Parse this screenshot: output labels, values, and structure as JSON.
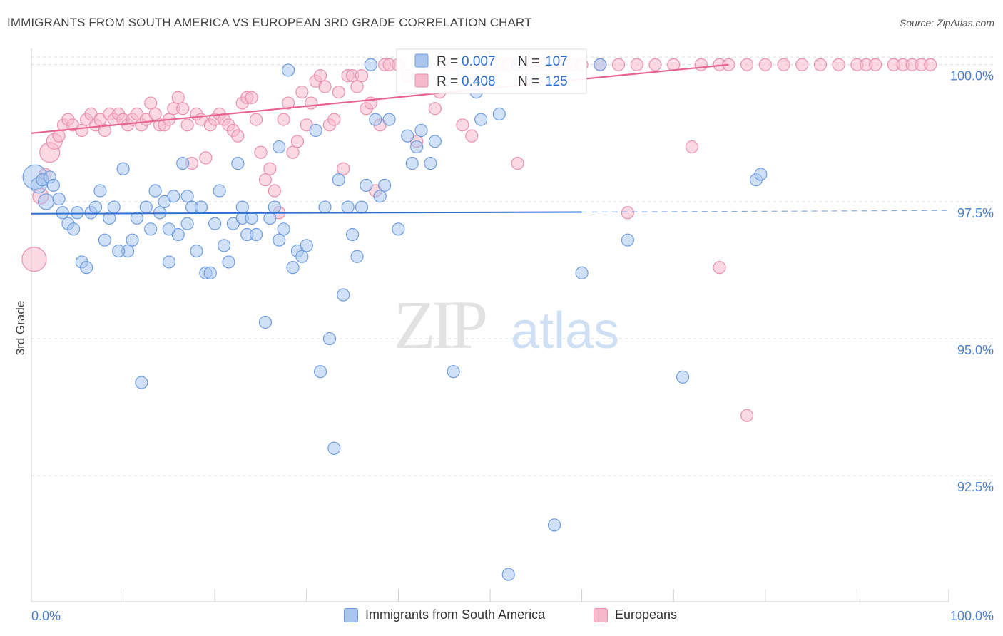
{
  "title": "IMMIGRANTS FROM SOUTH AMERICA VS EUROPEAN 3RD GRADE CORRELATION CHART",
  "source": "Source: ZipAtlas.com",
  "watermark": {
    "zip": "ZIP",
    "atlas": "atlas"
  },
  "colors": {
    "blue_fill": "#a9c6ee",
    "blue_stroke": "#6f9de0",
    "blue_line": "#2f6fd0",
    "pink_fill": "#f6b9cc",
    "pink_stroke": "#ea8fae",
    "pink_line": "#e8638f",
    "axis_text": "#4a7fd0",
    "grid": "#d9d9d9"
  },
  "legend_box": {
    "rows": [
      {
        "r_label": "R = ",
        "r_value": "0.007",
        "n_label": "N = ",
        "n_value": "107",
        "series": "blue"
      },
      {
        "r_label": "R = ",
        "r_value": "0.408",
        "n_label": "N = ",
        "n_value": "125",
        "series": "pink"
      }
    ]
  },
  "chart_data": {
    "type": "scatter",
    "title": "IMMIGRANTS FROM SOUTH AMERICA VS EUROPEAN 3RD GRADE CORRELATION CHART",
    "xlabel": "",
    "ylabel": "3rd Grade",
    "xlim": [
      0,
      100
    ],
    "ylim": [
      90.2,
      100.4
    ],
    "x_tick_labels": [
      "0.0%",
      "100.0%"
    ],
    "y_ticks": [
      100.0,
      97.5,
      95.0,
      92.5
    ],
    "y_tick_labels": [
      "100.0%",
      "97.5%",
      "95.0%",
      "92.5%"
    ],
    "grid": "horizontal dashed",
    "legend_position": "bottom",
    "series": [
      {
        "name": "Immigrants from South America",
        "color": "blue",
        "r": 0.007,
        "n": 107,
        "trend": {
          "x0": 0,
          "y0": 97.28,
          "x1": 60,
          "y1": 97.31,
          "dash_to": 100,
          "dash_y": 97.34
        },
        "points": [
          [
            0.4,
            97.95,
            4
          ],
          [
            0.8,
            97.8,
            2
          ],
          [
            1.2,
            97.9,
            1
          ],
          [
            1.6,
            97.5,
            2
          ],
          [
            2,
            97.95,
            1
          ],
          [
            2.4,
            97.8,
            1
          ],
          [
            3,
            97.55,
            1
          ],
          [
            3.4,
            97.3,
            1
          ],
          [
            4,
            97.1,
            1
          ],
          [
            4.6,
            97.0,
            1
          ],
          [
            5,
            97.3,
            1
          ],
          [
            5.5,
            96.4,
            1
          ],
          [
            6,
            96.3,
            1
          ],
          [
            6.5,
            97.3,
            1
          ],
          [
            7,
            97.4,
            1
          ],
          [
            7.5,
            97.7,
            1
          ],
          [
            8,
            96.8,
            1
          ],
          [
            8.5,
            97.2,
            1
          ],
          [
            9,
            97.4,
            1
          ],
          [
            10,
            98.1,
            1
          ],
          [
            10.5,
            96.6,
            1
          ],
          [
            11,
            96.8,
            1
          ],
          [
            11.5,
            97.2,
            1
          ],
          [
            12,
            94.2,
            1
          ],
          [
            12.5,
            97.4,
            1
          ],
          [
            13,
            97.0,
            1
          ],
          [
            13.5,
            97.7,
            1
          ],
          [
            14,
            97.3,
            1
          ],
          [
            14.5,
            97.5,
            1
          ],
          [
            15,
            96.4,
            1
          ],
          [
            15.5,
            97.6,
            1
          ],
          [
            16,
            96.9,
            1
          ],
          [
            16.5,
            98.2,
            1
          ],
          [
            17,
            97.6,
            1
          ],
          [
            17.5,
            97.4,
            1
          ],
          [
            18,
            96.6,
            1
          ],
          [
            18.5,
            97.4,
            1
          ],
          [
            19,
            96.2,
            1
          ],
          [
            19.5,
            96.2,
            1
          ],
          [
            20,
            97.1,
            1
          ],
          [
            20.5,
            97.7,
            1
          ],
          [
            21,
            96.7,
            1
          ],
          [
            21.5,
            96.4,
            1
          ],
          [
            22,
            97.1,
            1
          ],
          [
            22.5,
            98.2,
            1
          ],
          [
            23,
            97.2,
            1
          ],
          [
            23.5,
            96.9,
            1
          ],
          [
            24,
            97.2,
            1
          ],
          [
            24.5,
            96.9,
            1
          ],
          [
            25.5,
            95.3,
            1
          ],
          [
            26,
            97.2,
            1
          ],
          [
            26.5,
            97.4,
            1
          ],
          [
            27,
            98.5,
            1
          ],
          [
            27.5,
            97.0,
            1
          ],
          [
            28,
            99.9,
            1
          ],
          [
            28.5,
            96.3,
            1
          ],
          [
            29,
            96.6,
            1
          ],
          [
            29.5,
            96.5,
            1
          ],
          [
            30,
            96.7,
            1
          ],
          [
            31,
            98.8,
            1
          ],
          [
            31.5,
            94.4,
            1
          ],
          [
            32,
            97.4,
            1
          ],
          [
            32.5,
            95.0,
            1
          ],
          [
            33,
            93.0,
            1
          ],
          [
            33.5,
            97.9,
            1
          ],
          [
            34,
            95.8,
            1
          ],
          [
            34.5,
            97.4,
            1
          ],
          [
            35,
            96.9,
            1
          ],
          [
            35.5,
            96.5,
            1
          ],
          [
            36,
            97.4,
            1
          ],
          [
            37,
            100.0,
            1
          ],
          [
            37.5,
            99.0,
            1
          ],
          [
            38,
            97.6,
            1
          ],
          [
            38.5,
            97.8,
            1
          ],
          [
            39,
            99.0,
            1
          ],
          [
            40,
            97.0,
            1
          ],
          [
            41,
            98.7,
            1
          ],
          [
            41.5,
            98.2,
            1
          ],
          [
            42,
            98.5,
            1
          ],
          [
            42.5,
            98.8,
            1
          ],
          [
            43,
            100.0,
            1
          ],
          [
            43.5,
            98.2,
            1
          ],
          [
            44,
            98.6,
            1
          ],
          [
            45,
            99.7,
            1
          ],
          [
            46,
            94.4,
            1
          ],
          [
            47,
            99.9,
            1
          ],
          [
            48,
            99.7,
            1
          ],
          [
            48.5,
            99.5,
            1
          ],
          [
            49,
            99.0,
            1
          ],
          [
            49.5,
            99.7,
            1
          ],
          [
            51,
            99.1,
            1
          ],
          [
            52,
            90.7,
            1
          ],
          [
            53,
            100.0,
            1
          ],
          [
            55,
            99.7,
            1
          ],
          [
            57,
            91.6,
            1
          ],
          [
            60,
            96.2,
            1
          ],
          [
            62,
            100.0,
            1
          ],
          [
            65,
            96.8,
            1
          ],
          [
            71,
            94.3,
            1
          ],
          [
            79,
            97.9,
            1
          ],
          [
            79.5,
            98.0,
            1
          ],
          [
            36.5,
            97.8,
            1
          ],
          [
            23,
            97.4,
            1
          ],
          [
            17,
            97.1,
            1
          ],
          [
            9.5,
            96.6,
            1
          ],
          [
            27,
            96.8,
            1
          ],
          [
            15,
            97.0,
            1
          ]
        ]
      },
      {
        "name": "Europeans",
        "color": "pink",
        "r": 0.408,
        "n": 125,
        "trend": {
          "x0": 0,
          "y0": 98.75,
          "x1": 76,
          "y1": 100.0
        },
        "points": [
          [
            0.3,
            96.45,
            4
          ],
          [
            1,
            97.6,
            2
          ],
          [
            1.5,
            98.0,
            1
          ],
          [
            2,
            98.4,
            3
          ],
          [
            2.5,
            98.6,
            2
          ],
          [
            3,
            98.7,
            1
          ],
          [
            3.5,
            98.9,
            1
          ],
          [
            4,
            99.0,
            1
          ],
          [
            4.5,
            98.9,
            1
          ],
          [
            5.5,
            98.8,
            1
          ],
          [
            6,
            99.0,
            1
          ],
          [
            6.5,
            99.1,
            1
          ],
          [
            7,
            98.9,
            1
          ],
          [
            7.5,
            99.0,
            1
          ],
          [
            8,
            98.8,
            1
          ],
          [
            8.5,
            99.1,
            1
          ],
          [
            9,
            99.0,
            1
          ],
          [
            9.5,
            99.1,
            1
          ],
          [
            10,
            99.0,
            1
          ],
          [
            10.5,
            98.9,
            1
          ],
          [
            11,
            99.0,
            1
          ],
          [
            11.5,
            99.1,
            1
          ],
          [
            12,
            98.9,
            1
          ],
          [
            12.5,
            99.0,
            1
          ],
          [
            13,
            99.3,
            1
          ],
          [
            13.5,
            99.1,
            1
          ],
          [
            14,
            98.9,
            1
          ],
          [
            14.5,
            98.9,
            1
          ],
          [
            15,
            99.0,
            1
          ],
          [
            15.5,
            99.2,
            1
          ],
          [
            16,
            99.4,
            1
          ],
          [
            16.5,
            99.2,
            1
          ],
          [
            17,
            98.9,
            1
          ],
          [
            17.5,
            98.2,
            1
          ],
          [
            18,
            99.1,
            1
          ],
          [
            18.5,
            99.0,
            1
          ],
          [
            19,
            98.3,
            1
          ],
          [
            19.5,
            98.9,
            1
          ],
          [
            20,
            99.0,
            1
          ],
          [
            20.5,
            99.1,
            1
          ],
          [
            21,
            99.0,
            1
          ],
          [
            21.5,
            98.9,
            1
          ],
          [
            22,
            98.8,
            1
          ],
          [
            22.5,
            98.7,
            1
          ],
          [
            23,
            99.3,
            1
          ],
          [
            23.5,
            99.4,
            1
          ],
          [
            24,
            99.4,
            1
          ],
          [
            24.5,
            99.0,
            1
          ],
          [
            25,
            98.4,
            1
          ],
          [
            25.5,
            97.9,
            1
          ],
          [
            26,
            98.1,
            1
          ],
          [
            26.5,
            97.7,
            1
          ],
          [
            27,
            97.3,
            1
          ],
          [
            27.5,
            99.0,
            1
          ],
          [
            28,
            99.3,
            1
          ],
          [
            28.5,
            98.4,
            1
          ],
          [
            29,
            98.6,
            1
          ],
          [
            29.5,
            99.5,
            1
          ],
          [
            30,
            98.9,
            1
          ],
          [
            30.5,
            99.3,
            1
          ],
          [
            31,
            99.7,
            1
          ],
          [
            31.5,
            99.8,
            1
          ],
          [
            32,
            99.6,
            1
          ],
          [
            32.5,
            98.9,
            1
          ],
          [
            33,
            99.0,
            1
          ],
          [
            33.5,
            99.5,
            1
          ],
          [
            34,
            98.1,
            1
          ],
          [
            34.5,
            99.8,
            1
          ],
          [
            35,
            99.8,
            1
          ],
          [
            35.5,
            99.6,
            1
          ],
          [
            36,
            99.8,
            1
          ],
          [
            36.5,
            99.2,
            1
          ],
          [
            37,
            99.3,
            1
          ],
          [
            37.5,
            97.7,
            1
          ],
          [
            38,
            98.9,
            1
          ],
          [
            38.5,
            100.0,
            1
          ],
          [
            39,
            100.0,
            1
          ],
          [
            40,
            100.0,
            1
          ],
          [
            41,
            99.8,
            1
          ],
          [
            42,
            98.6,
            1
          ],
          [
            43,
            100.0,
            1
          ],
          [
            44,
            99.2,
            1
          ],
          [
            44.5,
            99.5,
            1
          ],
          [
            45,
            100.0,
            1
          ],
          [
            46,
            100.0,
            1
          ],
          [
            47,
            98.9,
            1
          ],
          [
            48,
            98.7,
            1
          ],
          [
            49,
            100.0,
            1
          ],
          [
            50,
            100.0,
            1
          ],
          [
            51,
            100.0,
            1
          ],
          [
            52,
            100.0,
            1
          ],
          [
            53,
            98.2,
            1
          ],
          [
            54,
            100.0,
            1
          ],
          [
            55,
            100.0,
            1
          ],
          [
            56,
            100.0,
            1
          ],
          [
            57,
            100.0,
            1
          ],
          [
            58,
            100.0,
            1
          ],
          [
            59,
            100.0,
            1
          ],
          [
            60,
            100.0,
            1
          ],
          [
            62,
            100.0,
            1
          ],
          [
            64,
            100.0,
            1
          ],
          [
            66,
            100.0,
            1
          ],
          [
            68,
            100.0,
            1
          ],
          [
            70,
            100.0,
            1
          ],
          [
            72,
            98.5,
            1
          ],
          [
            73,
            100.0,
            1
          ],
          [
            75,
            100.0,
            1
          ],
          [
            76,
            100.0,
            1
          ],
          [
            78,
            100.0,
            1
          ],
          [
            80,
            100.0,
            1
          ],
          [
            82,
            100.0,
            1
          ],
          [
            84,
            100.0,
            1
          ],
          [
            86,
            100.0,
            1
          ],
          [
            88,
            100.0,
            1
          ],
          [
            90,
            100.0,
            1
          ],
          [
            91,
            100.0,
            1
          ],
          [
            92,
            100.0,
            1
          ],
          [
            94,
            100.0,
            1
          ],
          [
            95,
            100.0,
            1
          ],
          [
            96,
            100.0,
            1
          ],
          [
            97,
            100.0,
            1
          ],
          [
            98,
            100.0,
            1
          ],
          [
            65,
            97.3,
            1
          ],
          [
            75,
            96.3,
            1
          ],
          [
            78,
            93.6,
            1
          ]
        ]
      }
    ]
  }
}
